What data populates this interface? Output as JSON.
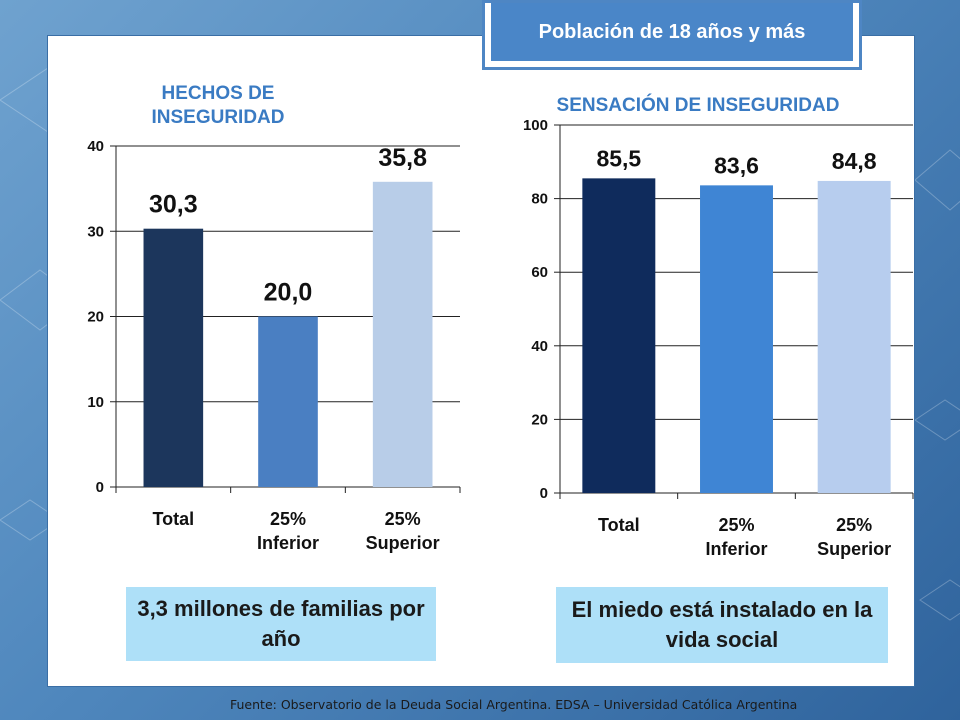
{
  "badge": {
    "label": "Población de 18 años y más"
  },
  "charts": [
    {
      "title": "HECHOS DE INSEGURIDAD",
      "callout": "3,3 millones de familias por año",
      "bar_labels": [
        "30,3",
        "20,0",
        "35,8"
      ],
      "colors": [
        "#1c365c",
        "#4a7fc2",
        "#b8cde8"
      ]
    },
    {
      "title": "SENSACIÓN DE INSEGURIDAD",
      "callout": "El miedo está instalado en la vida social",
      "bar_labels": [
        "85,5",
        "83,6",
        "84,8"
      ],
      "colors": [
        "#0f2b5c",
        "#3f85d4",
        "#b7cdee"
      ]
    }
  ],
  "source": "Fuente:  Observatorio de  la Deuda Social Argentina. EDSA  – Universidad Católica Argentina",
  "chart_data": [
    {
      "type": "bar",
      "title": "HECHOS DE INSEGURIDAD",
      "categories": [
        "Total",
        "25% Inferior",
        "25% Superior"
      ],
      "values": [
        30.3,
        20.0,
        35.8
      ],
      "ylim": [
        0,
        40
      ],
      "yticks": [
        0,
        10,
        20,
        30,
        40
      ],
      "grid": true
    },
    {
      "type": "bar",
      "title": "SENSACIÓN DE INSEGURIDAD",
      "categories": [
        "Total",
        "25% Inferior",
        "25% Superior"
      ],
      "values": [
        85.5,
        83.6,
        84.8
      ],
      "ylim": [
        0,
        100
      ],
      "yticks": [
        0,
        20,
        40,
        60,
        80,
        100
      ],
      "grid": true
    }
  ]
}
